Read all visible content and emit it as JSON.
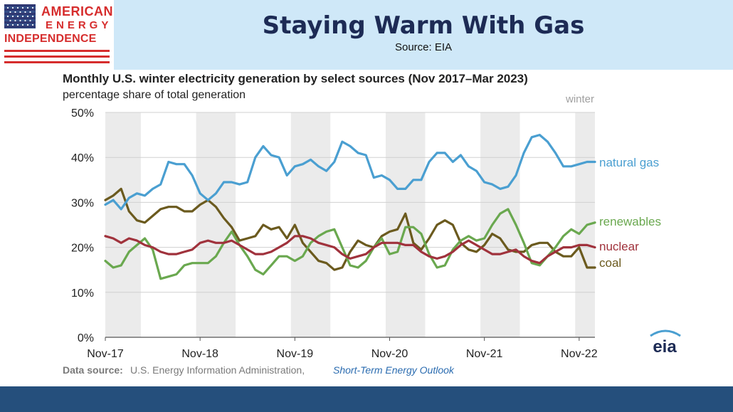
{
  "header": {
    "logo_line1": "AMERICAN",
    "logo_line2": "ENERGY",
    "logo_line3": "INDEPENDENCE",
    "title": "Staying Warm With Gas",
    "source": "Source: EIA"
  },
  "colors": {
    "title_bg": "#cfe8f8",
    "footer_bar": "#254f7c",
    "logo_red": "#d62d2d",
    "winter_shade": "#ebebeb"
  },
  "chart_data": {
    "type": "line",
    "title": "Monthly U.S. winter electricity generation by select sources (Nov 2017–Mar 2023)",
    "subtitle": "percentage share of total generation",
    "shade_label": "winter",
    "ylim": [
      0,
      50
    ],
    "y_ticks": [
      "0%",
      "10%",
      "20%",
      "30%",
      "40%",
      "50%"
    ],
    "x_tick_labels": [
      "Nov-17",
      "Nov-18",
      "Nov-19",
      "Nov-20",
      "Nov-21",
      "Nov-22"
    ],
    "x_start": "2017-11",
    "x_end": "2023-03",
    "winter_months": [
      "Nov",
      "Dec",
      "Jan",
      "Feb",
      "Mar"
    ],
    "grid": true,
    "series": [
      {
        "name": "natural gas",
        "color": "#4a9fd1",
        "values": [
          29.5,
          30.5,
          28.5,
          31,
          32,
          31.5,
          33,
          34,
          39,
          38.5,
          38.5,
          36,
          32,
          30.5,
          32,
          34.5,
          34.5,
          34,
          34.5,
          40,
          42.5,
          40.5,
          40,
          36,
          38,
          38.5,
          39.5,
          38,
          37,
          39,
          43.5,
          42.5,
          41,
          40.5,
          35.5,
          36,
          35,
          33,
          33,
          35,
          35,
          39,
          41,
          41,
          39,
          40.5,
          38,
          37,
          34.5,
          34,
          33,
          33.5,
          36,
          41,
          44.5,
          45,
          43.5,
          41,
          38,
          38,
          38.5,
          39,
          39
        ]
      },
      {
        "name": "renewables",
        "color": "#6aa84f",
        "values": [
          17,
          15.5,
          16,
          19,
          20.5,
          22,
          19.5,
          13,
          13.5,
          14,
          16,
          16.5,
          16.5,
          16.5,
          18,
          21,
          23.5,
          20.5,
          18,
          15,
          14,
          16,
          18,
          18,
          17,
          18,
          21,
          22.5,
          23.5,
          24,
          20,
          16,
          15.5,
          17,
          20,
          22,
          18.5,
          19,
          24.5,
          24.5,
          23,
          18.5,
          15.5,
          16,
          19.5,
          21.5,
          22.5,
          21.5,
          22,
          25,
          27.5,
          28.5,
          25,
          21,
          16.5,
          16,
          18,
          20,
          22.5,
          24,
          23,
          25,
          25.5
        ]
      },
      {
        "name": "nuclear",
        "color": "#a0323c",
        "values": [
          22.5,
          22,
          21,
          22,
          21.5,
          20.5,
          20,
          19,
          18.5,
          18.5,
          19,
          19.5,
          21,
          21.5,
          21,
          21,
          21.5,
          20.5,
          19.5,
          18.5,
          18.5,
          19,
          20,
          21,
          22.5,
          22.5,
          22,
          21,
          20.5,
          20,
          18.5,
          17.5,
          18,
          18.5,
          20,
          21,
          21,
          21,
          20.5,
          20.5,
          19,
          18,
          17.5,
          18,
          19,
          20.5,
          21.5,
          20.5,
          19.5,
          18.5,
          18.5,
          19,
          19.5,
          18,
          17,
          16.5,
          18,
          19,
          20,
          20,
          20.5,
          20.5,
          20
        ]
      },
      {
        "name": "coal",
        "color": "#6b5a1e",
        "values": [
          30.5,
          31.5,
          33,
          28,
          26,
          25.5,
          27,
          28.5,
          29,
          29,
          28,
          28,
          29.5,
          30.5,
          29,
          26.5,
          24.5,
          21.5,
          22,
          22.5,
          25,
          24,
          24.5,
          22,
          25,
          21,
          19,
          17,
          16.5,
          15,
          15.5,
          19,
          21.5,
          20.5,
          20,
          22.5,
          23.5,
          24,
          27.5,
          21,
          19.5,
          22,
          25,
          26,
          25,
          21,
          19.5,
          19,
          20.5,
          23,
          22,
          19.5,
          19,
          19,
          20.5,
          21,
          21,
          19,
          18,
          18,
          20,
          15.5,
          15.5
        ]
      }
    ]
  },
  "footnote": {
    "prefix": "Data source:",
    "text": "U.S. Energy Information Administration,",
    "publication": "Short-Term Energy Outlook"
  },
  "eia_logo": "eia"
}
